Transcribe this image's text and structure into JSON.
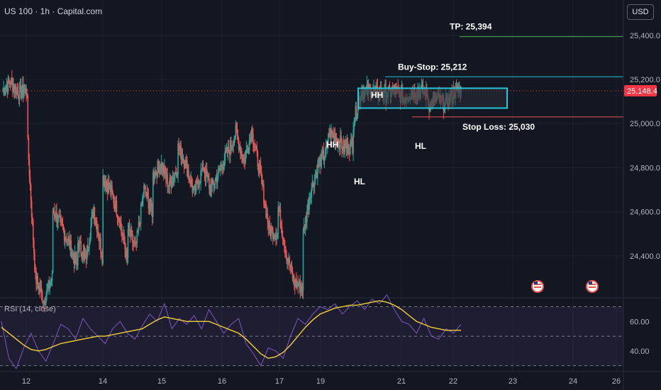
{
  "header": {
    "symbol_title": "US 100 · 1h · Capital.com",
    "currency": "USD"
  },
  "rsi": {
    "label": "RSI (14, close)"
  },
  "colors": {
    "background": "#131722",
    "up": "#26a69a",
    "down": "#ef5350",
    "rsi_line": "#7e57c2",
    "rsi_ma": "#f5d033",
    "box": "#26c6da",
    "tp_line": "#4caf50",
    "bs_line": "#26c6da",
    "sl_line": "#ef5350",
    "price_tag": "#f23645",
    "text": "#ffffff",
    "axis_text": "#b2b5be"
  },
  "chart_data": [
    {
      "type": "candlestick",
      "title": "US 100 · 1h · Capital.com",
      "y_axis_ticks": [
        "25,400.0",
        "25,200.0",
        "25,000.0",
        "24,800.0",
        "24,600.0",
        "24,400.0"
      ],
      "y_tick_values": [
        25400,
        25200,
        25000,
        24800,
        24600,
        24400
      ],
      "ylim": [
        24210,
        25560
      ],
      "x_axis_ticks": [
        "12",
        "14",
        "15",
        "16",
        "17",
        "19",
        "21",
        "22",
        "23",
        "24",
        "26"
      ],
      "x_tick_positions": [
        37,
        145,
        228,
        313,
        394,
        452,
        566,
        639,
        723,
        808,
        869
      ],
      "last_price": 25148.4,
      "last_price_label": "25,148.4",
      "levels": [
        {
          "name": "TP",
          "label": "TP: 25,394",
          "value": 25394
        },
        {
          "name": "buy-stop",
          "label": "Buy-Stop: 25,212",
          "value": 25212
        },
        {
          "name": "stop-loss",
          "label": "Stop Loss: 25,030",
          "value": 25030
        }
      ],
      "consolidation_range": {
        "high": 25160,
        "low": 25070
      },
      "annotations": [
        "HH",
        "HL",
        "HH",
        "HL"
      ],
      "event_icons": 2,
      "segments": [
        [
          25150,
          25190,
          25140,
          25150
        ],
        [
          24960,
          24300,
          24200,
          24300
        ],
        [
          24620,
          24540,
          24460,
          24350
        ],
        [
          24470,
          24380,
          24620,
          24400
        ],
        [
          24760,
          24700,
          24580,
          24380
        ],
        [
          24530,
          24430,
          24700,
          24600
        ],
        [
          24760,
          24820,
          24720,
          24800
        ],
        [
          24900,
          24820,
          24680,
          24790
        ],
        [
          24820,
          24700,
          24780,
          24870
        ],
        [
          24860,
          24960,
          24830,
          24980
        ],
        [
          24950,
          24760,
          24520,
          24500
        ],
        [
          24640,
          24420,
          24280,
          24260
        ],
        [
          24480,
          24700,
          24820,
          24880
        ],
        [
          24960,
          24940,
          24890,
          24900
        ],
        [
          24990,
          25140,
          25150,
          25140
        ],
        [
          25150,
          25130,
          25150,
          25120
        ],
        [
          25110,
          25140,
          25150,
          25130
        ],
        [
          25080,
          25110,
          25090,
          25130
        ],
        [
          25145,
          25150
        ]
      ]
    },
    {
      "type": "line",
      "title": "RSI (14, close)",
      "y_axis_ticks": [
        "60.00",
        "40.00"
      ],
      "y_tick_values": [
        60,
        40
      ],
      "ylim": [
        26,
        76
      ],
      "bands": [
        70,
        50,
        30
      ],
      "series": [
        {
          "name": "RSI",
          "values": [
            60,
            35,
            28,
            42,
            52,
            40,
            33,
            45,
            58,
            55,
            48,
            62,
            55,
            50,
            45,
            55,
            60,
            52,
            48,
            57,
            65,
            60,
            72,
            55,
            62,
            58,
            64,
            55,
            68,
            60,
            52,
            58,
            62,
            45,
            38,
            30,
            42,
            40,
            35,
            50,
            62,
            58,
            65,
            70,
            68,
            72,
            65,
            70,
            74,
            68,
            75,
            72,
            78,
            68,
            60,
            58,
            52,
            62,
            50,
            48,
            55,
            52,
            58
          ]
        },
        {
          "name": "RSI-based MA",
          "values": [
            56,
            52,
            48,
            44,
            41,
            40,
            41,
            43,
            45,
            46,
            47,
            48,
            49,
            50,
            50,
            51,
            52,
            53,
            54,
            55,
            58,
            61,
            63,
            62,
            61,
            60,
            60,
            60,
            60,
            58,
            56,
            54,
            52,
            48,
            43,
            38,
            35,
            36,
            39,
            44,
            50,
            56,
            61,
            65,
            67,
            69,
            70,
            71,
            71,
            72,
            73,
            74,
            73,
            71,
            68,
            64,
            60,
            58,
            56,
            55,
            54,
            54,
            54
          ]
        }
      ]
    }
  ]
}
